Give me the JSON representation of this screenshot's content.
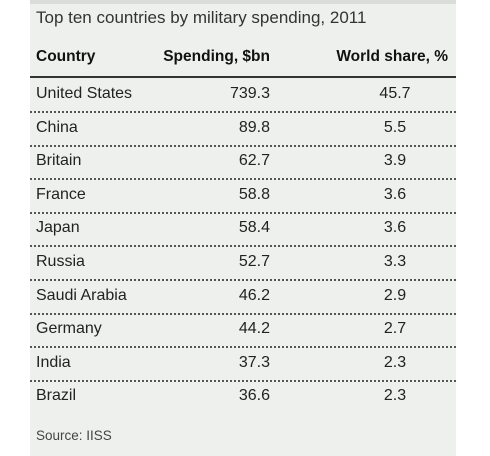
{
  "chart_data": {
    "type": "table",
    "title": "Top ten countries by military spending, 2011",
    "columns": [
      "Country",
      "Spending, $bn",
      "World share, %"
    ],
    "rows": [
      {
        "country": "United States",
        "spending": "739.3",
        "share": "45.7"
      },
      {
        "country": "China",
        "spending": "89.8",
        "share": "5.5"
      },
      {
        "country": "Britain",
        "spending": "62.7",
        "share": "3.9"
      },
      {
        "country": "France",
        "spending": "58.8",
        "share": "3.6"
      },
      {
        "country": "Japan",
        "spending": "58.4",
        "share": "3.6"
      },
      {
        "country": "Russia",
        "spending": "52.7",
        "share": "3.3"
      },
      {
        "country": "Saudi Arabia",
        "spending": "46.2",
        "share": "2.9"
      },
      {
        "country": "Germany",
        "spending": "44.2",
        "share": "2.7"
      },
      {
        "country": "India",
        "spending": "37.3",
        "share": "2.3"
      },
      {
        "country": "Brazil",
        "spending": "36.6",
        "share": "2.3"
      }
    ],
    "source": "Source: IISS"
  }
}
